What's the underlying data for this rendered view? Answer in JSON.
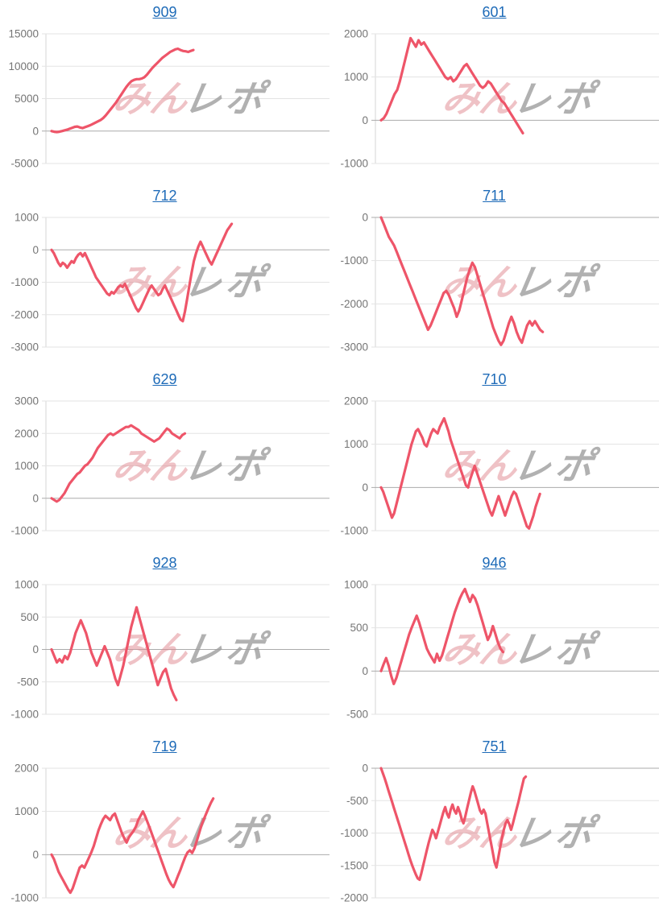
{
  "style": {
    "page_background": "#ffffff",
    "line_color": "#ee5569",
    "title_color": "#1e6bb8",
    "tick_label_color": "#757575",
    "grid_color": "#e3e3e3",
    "zero_line_color": "#ababab",
    "axis_line_color": "#d6d6d6",
    "watermark": {
      "pink_text": "みん",
      "gray_text": "レポ",
      "pink_color": "#e0868e",
      "gray_color": "#9e9e9e",
      "pink_opacity": 0.5,
      "gray_opacity": 0.8
    }
  },
  "chart_data": {
    "type": "line",
    "legend": "none",
    "grid": "horizontal",
    "x_tick_labels": "none",
    "charts": [
      {
        "title": "909",
        "yticks": [
          15000,
          10000,
          5000,
          0,
          -5000
        ],
        "ylim": [
          -5000,
          15000
        ],
        "end_frac": 0.52,
        "values": [
          0,
          -100,
          -150,
          -100,
          0,
          100,
          200,
          350,
          500,
          650,
          700,
          550,
          450,
          600,
          750,
          900,
          1100,
          1300,
          1500,
          1700,
          2000,
          2400,
          2900,
          3400,
          3900,
          4400,
          5000,
          5600,
          6200,
          6800,
          7300,
          7700,
          7900,
          8000,
          8000,
          8100,
          8300,
          8700,
          9200,
          9700,
          10100,
          10500,
          10900,
          11300,
          11600,
          11900,
          12200,
          12400,
          12600,
          12700,
          12500,
          12350,
          12300,
          12200,
          12350,
          12500
        ]
      },
      {
        "title": "601",
        "yticks": [
          2000,
          1000,
          0,
          -1000
        ],
        "ylim": [
          -1000,
          2000
        ],
        "end_frac": 0.52,
        "values": [
          0,
          50,
          150,
          300,
          450,
          600,
          700,
          900,
          1150,
          1400,
          1650,
          1900,
          1800,
          1700,
          1850,
          1750,
          1800,
          1700,
          1600,
          1500,
          1400,
          1300,
          1200,
          1100,
          1000,
          950,
          1000,
          900,
          950,
          1050,
          1150,
          1250,
          1300,
          1200,
          1100,
          1000,
          900,
          800,
          750,
          800,
          900,
          850,
          750,
          650,
          550,
          450,
          400,
          300,
          200,
          100,
          0,
          -100,
          -200,
          -300
        ]
      },
      {
        "title": "712",
        "yticks": [
          1000,
          0,
          -1000,
          -2000,
          -3000
        ],
        "ylim": [
          -3000,
          1000
        ],
        "end_frac": 0.655,
        "values": [
          0,
          -100,
          -250,
          -400,
          -500,
          -400,
          -450,
          -550,
          -450,
          -350,
          -400,
          -250,
          -150,
          -100,
          -200,
          -100,
          -250,
          -400,
          -550,
          -700,
          -850,
          -950,
          -1050,
          -1150,
          -1250,
          -1350,
          -1400,
          -1300,
          -1350,
          -1250,
          -1150,
          -1100,
          -1150,
          -1050,
          -1200,
          -1350,
          -1500,
          -1650,
          -1800,
          -1900,
          -1800,
          -1650,
          -1500,
          -1350,
          -1200,
          -1100,
          -1200,
          -1300,
          -1400,
          -1350,
          -1200,
          -1100,
          -1250,
          -1400,
          -1550,
          -1700,
          -1850,
          -2000,
          -2150,
          -2200,
          -1900,
          -1500,
          -1100,
          -700,
          -350,
          -100,
          100,
          250,
          100,
          -50,
          -200,
          -350,
          -450,
          -300,
          -150,
          0,
          150,
          300,
          450,
          600,
          700,
          800
        ]
      },
      {
        "title": "711",
        "yticks": [
          0,
          -1000,
          -2000,
          -3000
        ],
        "ylim": [
          -3000,
          0
        ],
        "end_frac": 0.59,
        "values": [
          0,
          -150,
          -300,
          -450,
          -550,
          -650,
          -800,
          -950,
          -1100,
          -1250,
          -1400,
          -1550,
          -1700,
          -1850,
          -2000,
          -2150,
          -2300,
          -2450,
          -2600,
          -2500,
          -2350,
          -2200,
          -2050,
          -1900,
          -1750,
          -1700,
          -1800,
          -1950,
          -2100,
          -2300,
          -2150,
          -1900,
          -1650,
          -1400,
          -1200,
          -1050,
          -1150,
          -1350,
          -1550,
          -1750,
          -1950,
          -2150,
          -2350,
          -2550,
          -2700,
          -2850,
          -2950,
          -2850,
          -2650,
          -2450,
          -2300,
          -2450,
          -2650,
          -2800,
          -2900,
          -2700,
          -2500,
          -2400,
          -2500,
          -2400,
          -2500,
          -2600,
          -2650
        ]
      },
      {
        "title": "629",
        "yticks": [
          3000,
          2000,
          1000,
          0,
          -1000
        ],
        "ylim": [
          -1000,
          3000
        ],
        "end_frac": 0.49,
        "values": [
          0,
          -50,
          -100,
          -50,
          50,
          150,
          300,
          450,
          550,
          650,
          750,
          800,
          900,
          1000,
          1050,
          1150,
          1250,
          1400,
          1550,
          1650,
          1750,
          1850,
          1950,
          2000,
          1950,
          2000,
          2050,
          2100,
          2150,
          2200,
          2200,
          2250,
          2200,
          2150,
          2100,
          2000,
          1950,
          1900,
          1850,
          1800,
          1750,
          1800,
          1850,
          1950,
          2050,
          2150,
          2100,
          2000,
          1950,
          1900,
          1850,
          1950,
          2000
        ]
      },
      {
        "title": "710",
        "yticks": [
          2000,
          1000,
          0,
          -1000
        ],
        "ylim": [
          -1000,
          2000
        ],
        "end_frac": 0.58,
        "values": [
          0,
          -100,
          -250,
          -400,
          -550,
          -700,
          -600,
          -400,
          -200,
          0,
          200,
          400,
          600,
          800,
          1000,
          1150,
          1300,
          1350,
          1250,
          1150,
          1000,
          950,
          1100,
          1250,
          1350,
          1300,
          1250,
          1400,
          1500,
          1600,
          1450,
          1300,
          1100,
          950,
          800,
          650,
          500,
          350,
          200,
          50,
          0,
          200,
          350,
          500,
          350,
          200,
          50,
          -100,
          -250,
          -400,
          -550,
          -650,
          -500,
          -350,
          -200,
          -350,
          -500,
          -650,
          -500,
          -350,
          -200,
          -100,
          -150,
          -300,
          -450,
          -600,
          -750,
          -900,
          -950,
          -800,
          -650,
          -450,
          -300,
          -150
        ]
      },
      {
        "title": "928",
        "yticks": [
          1000,
          500,
          0,
          -500,
          -1000
        ],
        "ylim": [
          -1000,
          1000
        ],
        "end_frac": 0.46,
        "values": [
          0,
          -100,
          -200,
          -150,
          -200,
          -100,
          -150,
          -50,
          100,
          250,
          350,
          450,
          350,
          250,
          100,
          -50,
          -150,
          -250,
          -150,
          -50,
          50,
          -50,
          -150,
          -300,
          -450,
          -550,
          -400,
          -250,
          -50,
          150,
          350,
          500,
          650,
          500,
          350,
          200,
          50,
          -100,
          -250,
          -400,
          -550,
          -450,
          -350,
          -300,
          -450,
          -600,
          -700,
          -780
        ]
      },
      {
        "title": "946",
        "yticks": [
          1000,
          500,
          0,
          -500
        ],
        "ylim": [
          -500,
          1000
        ],
        "end_frac": 0.45,
        "values": [
          0,
          80,
          150,
          60,
          -60,
          -150,
          -80,
          20,
          120,
          220,
          320,
          420,
          500,
          570,
          640,
          560,
          460,
          360,
          260,
          200,
          150,
          100,
          200,
          120,
          180,
          280,
          380,
          480,
          580,
          680,
          760,
          840,
          900,
          950,
          870,
          800,
          880,
          840,
          760,
          660,
          560,
          460,
          360,
          420,
          520,
          430,
          330,
          260,
          220
        ]
      },
      {
        "title": "719",
        "yticks": [
          2000,
          1000,
          0,
          -1000
        ],
        "ylim": [
          -1000,
          2000
        ],
        "end_frac": 0.59,
        "values": [
          0,
          -100,
          -250,
          -400,
          -500,
          -600,
          -700,
          -800,
          -880,
          -780,
          -620,
          -460,
          -300,
          -250,
          -300,
          -180,
          -60,
          60,
          200,
          380,
          560,
          700,
          820,
          900,
          850,
          800,
          900,
          950,
          800,
          650,
          500,
          380,
          280,
          400,
          480,
          550,
          650,
          800,
          900,
          1000,
          880,
          740,
          600,
          450,
          300,
          150,
          0,
          -150,
          -300,
          -450,
          -580,
          -680,
          -750,
          -620,
          -480,
          -350,
          -200,
          -60,
          50,
          100,
          40,
          150,
          320,
          500,
          680,
          820,
          950,
          1080,
          1200,
          1300
        ]
      },
      {
        "title": "751",
        "yticks": [
          0,
          -500,
          -1000,
          -1500,
          -2000
        ],
        "ylim": [
          -2000,
          0
        ],
        "end_frac": 0.53,
        "values": [
          0,
          -80,
          -160,
          -250,
          -340,
          -430,
          -520,
          -610,
          -700,
          -790,
          -880,
          -970,
          -1060,
          -1150,
          -1240,
          -1330,
          -1420,
          -1500,
          -1570,
          -1640,
          -1700,
          -1720,
          -1620,
          -1500,
          -1380,
          -1260,
          -1150,
          -1050,
          -950,
          -1000,
          -1080,
          -980,
          -880,
          -780,
          -680,
          -600,
          -700,
          -760,
          -640,
          -560,
          -650,
          -700,
          -600,
          -680,
          -780,
          -850,
          -740,
          -620,
          -500,
          -380,
          -280,
          -350,
          -450,
          -550,
          -650,
          -700,
          -640,
          -700,
          -850,
          -1000,
          -1150,
          -1300,
          -1450,
          -1530,
          -1380,
          -1230,
          -1080,
          -950,
          -850,
          -800,
          -860,
          -950,
          -850,
          -740,
          -630,
          -520,
          -400,
          -280,
          -160,
          -130
        ]
      }
    ]
  }
}
